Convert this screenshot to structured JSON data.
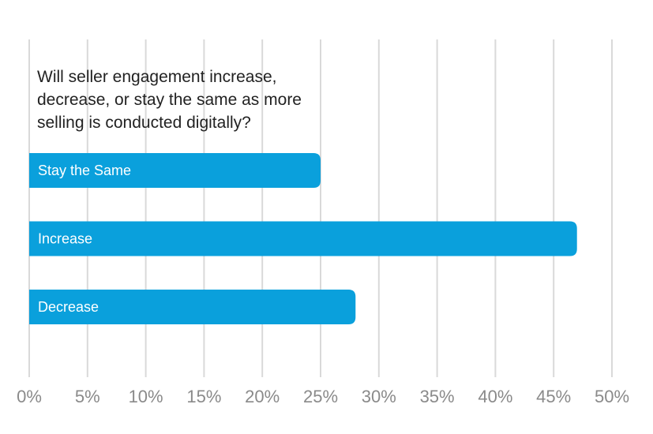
{
  "chart_data": {
    "type": "bar",
    "orientation": "horizontal",
    "title_lines": [
      "Will seller engagement increase,",
      "decrease, or stay the same as more",
      "selling is conducted digitally?"
    ],
    "categories": [
      "Stay the Same",
      "Increase",
      "Decrease"
    ],
    "values": [
      25,
      47,
      28
    ],
    "unit": "%",
    "xlim": [
      0,
      50
    ],
    "xticks": [
      0,
      5,
      10,
      15,
      20,
      25,
      30,
      35,
      40,
      45,
      50
    ],
    "xtick_labels": [
      "0%",
      "5%",
      "10%",
      "15%",
      "20%",
      "25%",
      "30%",
      "35%",
      "40%",
      "45%",
      "50%"
    ],
    "grid": "vertical",
    "bar_color": "#0aa0dc",
    "grid_color": "#d9d9d9"
  }
}
